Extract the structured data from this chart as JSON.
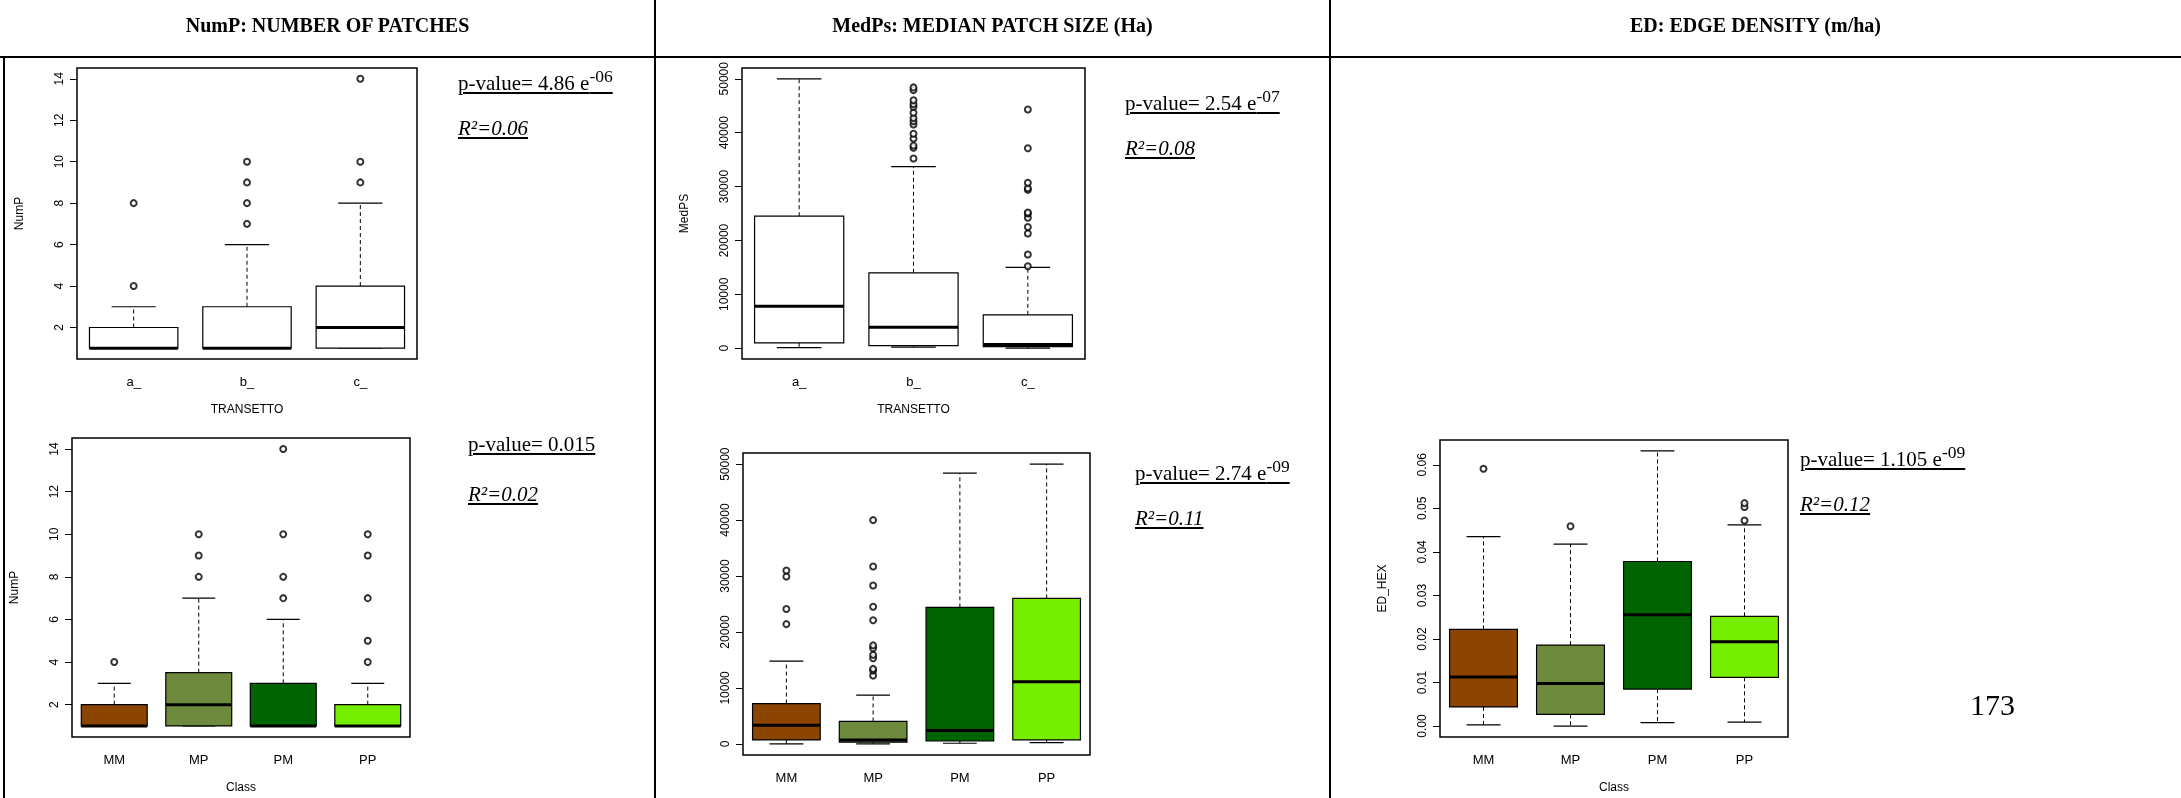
{
  "chart_data": [
    {
      "type": "box",
      "title": "NumP: NUMBER OF PATCHES",
      "xlabel": "TRANSETTO",
      "ylabel": "NumP",
      "categories": [
        "a_",
        "b_",
        "c_"
      ],
      "colors": [
        "#ffffff",
        "#ffffff",
        "#ffffff"
      ],
      "ylim": [
        0.48,
        14.52
      ],
      "yticks": [
        2,
        4,
        6,
        8,
        10,
        12,
        14
      ],
      "annotations": [
        "p-value= 4.86 e$^{-06}$",
        "R²=0.06"
      ],
      "boxes": [
        {
          "low": 1,
          "q1": 1,
          "median": 1,
          "q3": 2,
          "high": 3,
          "outliers": [
            4,
            8
          ]
        },
        {
          "low": 1,
          "q1": 1,
          "median": 1,
          "q3": 3,
          "high": 6,
          "outliers": [
            7,
            8,
            9,
            10
          ]
        },
        {
          "low": 1,
          "q1": 1,
          "median": 2,
          "q3": 4,
          "high": 8,
          "outliers": [
            9,
            10,
            14
          ]
        }
      ]
    },
    {
      "type": "box",
      "title": "MedPs: MEDIAN PATCH SIZE (Ha)",
      "xlabel": "TRANSETTO",
      "ylabel": "MedPS",
      "categories": [
        "a_",
        "b_",
        "c_"
      ],
      "colors": [
        "#ffffff",
        "#ffffff",
        "#ffffff"
      ],
      "ylim": [
        -2000,
        52000
      ],
      "yticks": [
        0,
        10000,
        20000,
        30000,
        40000,
        50000
      ],
      "annotations": [
        "p-value=  2.54 e$^{-07}$",
        "R²=0.08"
      ],
      "boxes": [
        {
          "low": 100,
          "q1": 1000,
          "median": 7800,
          "q3": 24500,
          "high": 50000
        },
        {
          "low": 200,
          "q1": 500,
          "median": 3900,
          "q3": 14000,
          "high": 33700,
          "outliers": [
            35200,
            37200,
            37600,
            38900,
            39800,
            41500,
            42100,
            42700,
            43700,
            44800,
            45300,
            46000,
            47900,
            48400
          ]
        },
        {
          "low": 0,
          "q1": 300,
          "median": 700,
          "q3": 6200,
          "high": 15000,
          "outliers": [
            15200,
            17400,
            21300,
            22500,
            24200,
            25000,
            25200,
            29400,
            29700,
            30700,
            37100,
            44300
          ]
        }
      ]
    },
    {
      "type": "box",
      "xlabel": "Class",
      "ylabel": "NumP",
      "categories": [
        "MM",
        "MP",
        "PM",
        "PP"
      ],
      "colors": [
        "#8b4500",
        "#6e8b3d",
        "#006400",
        "#76ee00"
      ],
      "ylim": [
        0.48,
        14.52
      ],
      "yticks": [
        2,
        4,
        6,
        8,
        10,
        12,
        14
      ],
      "annotations": [
        "p-value= 0.015",
        "R²=0.02"
      ],
      "boxes": [
        {
          "low": 1,
          "q1": 1,
          "median": 1,
          "q3": 2,
          "high": 3,
          "outliers": [
            4
          ]
        },
        {
          "low": 1,
          "q1": 1,
          "median": 2,
          "q3": 3.5,
          "high": 7,
          "outliers": [
            8,
            9,
            10
          ]
        },
        {
          "low": 1,
          "q1": 1,
          "median": 1,
          "q3": 3,
          "high": 6,
          "outliers": [
            7,
            8,
            10,
            14
          ]
        },
        {
          "low": 1,
          "q1": 1,
          "median": 1,
          "q3": 2,
          "high": 3,
          "outliers": [
            4,
            5,
            7,
            9,
            10
          ]
        }
      ]
    },
    {
      "type": "box",
      "categories": [
        "MM",
        "MP",
        "PM",
        "PP"
      ],
      "colors": [
        "#8b4500",
        "#6e8b3d",
        "#006400",
        "#76ee00"
      ],
      "ylim": [
        -2000,
        52000
      ],
      "yticks": [
        0,
        10000,
        20000,
        30000,
        40000,
        50000
      ],
      "annotations": [
        "p-value= 2.74 e$^{-09}$",
        "R²=0.11"
      ],
      "boxes": [
        {
          "low": 0,
          "q1": 700,
          "median": 3300,
          "q3": 7200,
          "high": 14800,
          "outliers": [
            21400,
            24100,
            29900,
            31000
          ]
        },
        {
          "low": 0,
          "q1": 300,
          "median": 700,
          "q3": 4000,
          "high": 8700,
          "outliers": [
            12200,
            13100,
            13400,
            15300,
            15900,
            17100,
            17600,
            22100,
            24500,
            28300,
            31700,
            40000
          ]
        },
        {
          "low": 100,
          "q1": 500,
          "median": 2400,
          "q3": 24400,
          "high": 48400
        },
        {
          "low": 200,
          "q1": 700,
          "median": 11100,
          "q3": 26000,
          "high": 50000
        }
      ]
    },
    {
      "type": "box",
      "title": "ED: EDGE DENSITY  (m/ha)",
      "xlabel": "Class",
      "ylabel": "ED_HEX",
      "categories": [
        "MM",
        "MP",
        "PM",
        "PP"
      ],
      "colors": [
        "#8b4500",
        "#6e8b3d",
        "#006400",
        "#76ee00"
      ],
      "ylim": [
        -0.0025,
        0.0657
      ],
      "yticks": [
        {
          "value": 0,
          "label": "0.00"
        },
        {
          "value": 0.01,
          "label": "0.01"
        },
        {
          "value": 0.02,
          "label": "0.02"
        },
        {
          "value": 0.03,
          "label": "0.03"
        },
        {
          "value": 0.04,
          "label": "0.04"
        },
        {
          "value": 0.05,
          "label": "0.05"
        },
        {
          "value": 0.06,
          "label": "0.06"
        }
      ],
      "annotations": [
        "p-value= 1.105 e$^{-09}$",
        "R²=0.12",
        "173"
      ],
      "boxes": [
        {
          "low": 0.0003,
          "q1": 0.0044,
          "median": 0.0113,
          "q3": 0.0222,
          "high": 0.0435,
          "outliers": [
            0.0591
          ]
        },
        {
          "low": 0,
          "q1": 0.0027,
          "median": 0.0098,
          "q3": 0.0186,
          "high": 0.0418,
          "outliers": [
            0.0459
          ]
        },
        {
          "low": 0.0008,
          "q1": 0.0085,
          "median": 0.0256,
          "q3": 0.0378,
          "high": 0.0632
        },
        {
          "low": 0.0009,
          "q1": 0.0112,
          "median": 0.0194,
          "q3": 0.0252,
          "high": 0.0462,
          "outliers": [
            0.0472,
            0.0503,
            0.0512
          ]
        }
      ]
    }
  ]
}
